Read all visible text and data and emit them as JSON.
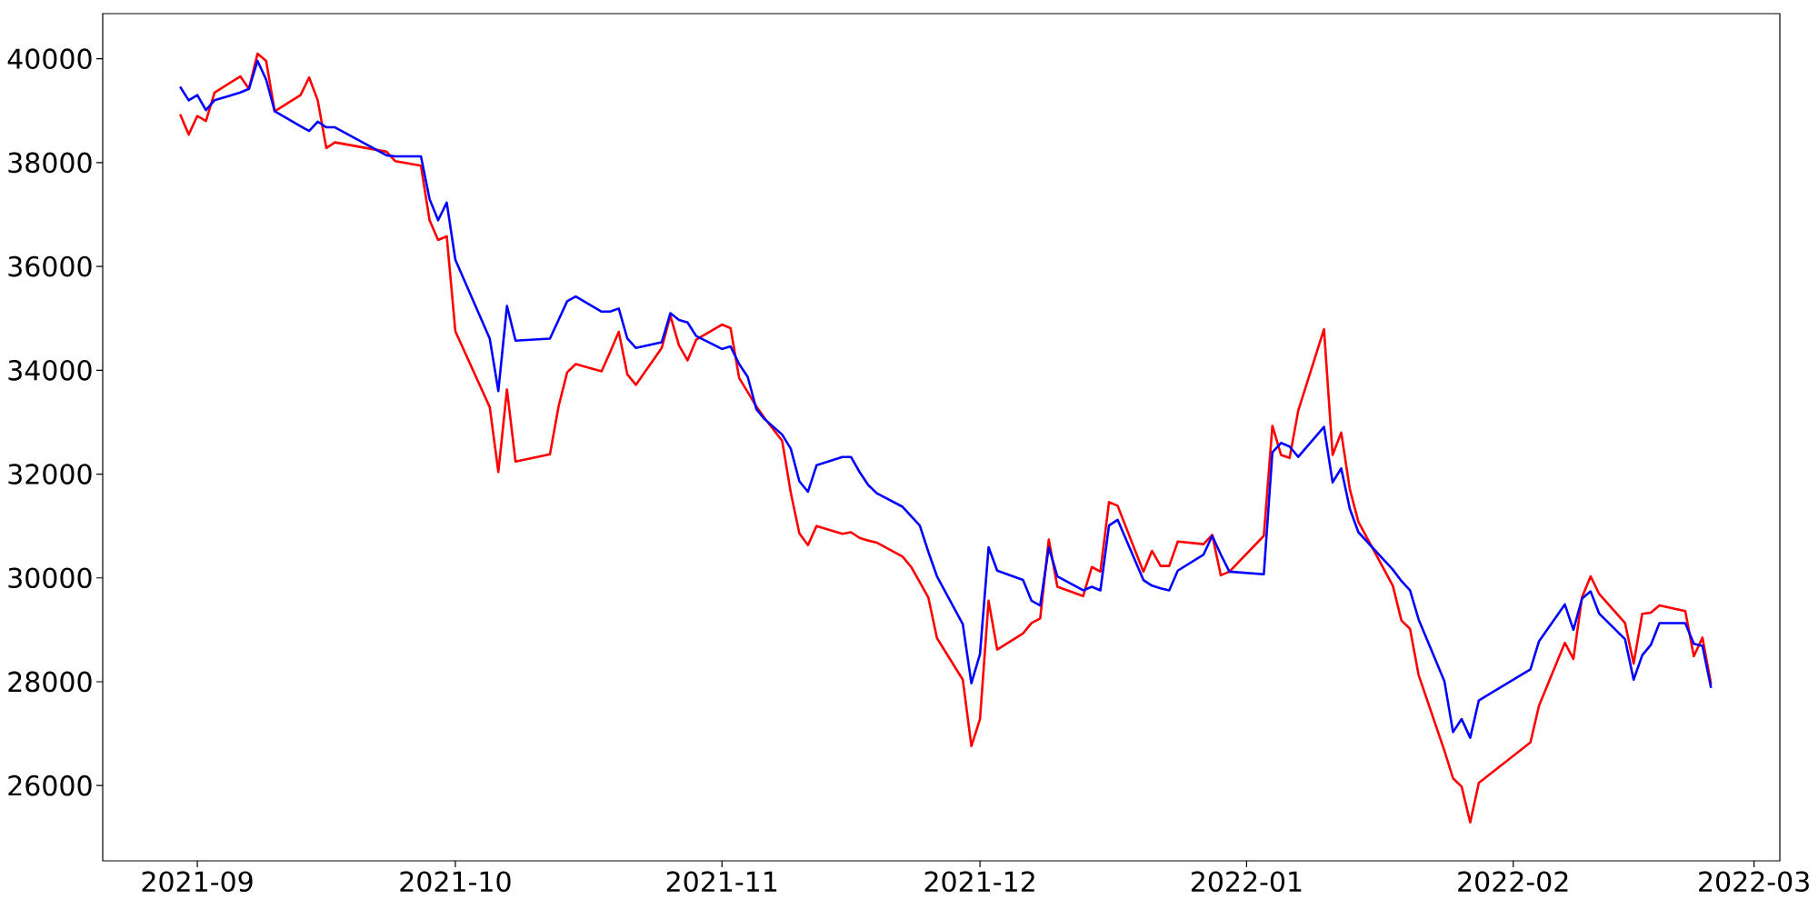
{
  "chart_data": {
    "type": "line",
    "x": [
      "2021-08-30",
      "2021-08-31",
      "2021-09-01",
      "2021-09-02",
      "2021-09-03",
      "2021-09-06",
      "2021-09-07",
      "2021-09-08",
      "2021-09-09",
      "2021-09-10",
      "2021-09-13",
      "2021-09-14",
      "2021-09-15",
      "2021-09-16",
      "2021-09-17",
      "2021-09-23",
      "2021-09-24",
      "2021-09-27",
      "2021-09-28",
      "2021-09-29",
      "2021-09-30",
      "2021-10-01",
      "2021-10-05",
      "2021-10-06",
      "2021-10-07",
      "2021-10-08",
      "2021-10-12",
      "2021-10-13",
      "2021-10-14",
      "2021-10-15",
      "2021-10-18",
      "2021-10-19",
      "2021-10-20",
      "2021-10-21",
      "2021-10-22",
      "2021-10-25",
      "2021-10-26",
      "2021-10-27",
      "2021-10-28",
      "2021-10-29",
      "2021-11-01",
      "2021-11-02",
      "2021-11-03",
      "2021-11-04",
      "2021-11-05",
      "2021-11-06",
      "2021-11-08",
      "2021-11-09",
      "2021-11-10",
      "2021-11-11",
      "2021-11-12",
      "2021-11-15",
      "2021-11-16",
      "2021-11-17",
      "2021-11-18",
      "2021-11-19",
      "2021-11-22",
      "2021-11-23",
      "2021-11-24",
      "2021-11-25",
      "2021-11-26",
      "2021-11-29",
      "2021-11-30",
      "2021-12-01",
      "2021-12-02",
      "2021-12-03",
      "2021-12-06",
      "2021-12-07",
      "2021-12-08",
      "2021-12-09",
      "2021-12-10",
      "2021-12-13",
      "2021-12-14",
      "2021-12-15",
      "2021-12-16",
      "2021-12-17",
      "2021-12-20",
      "2021-12-21",
      "2021-12-22",
      "2021-12-23",
      "2021-12-24",
      "2021-12-27",
      "2021-12-28",
      "2021-12-29",
      "2021-12-30",
      "2022-01-03",
      "2022-01-04",
      "2022-01-05",
      "2022-01-06",
      "2022-01-07",
      "2022-01-10",
      "2022-01-11",
      "2022-01-12",
      "2022-01-13",
      "2022-01-14",
      "2022-01-18",
      "2022-01-19",
      "2022-01-20",
      "2022-01-21",
      "2022-01-24",
      "2022-01-25",
      "2022-01-26",
      "2022-01-27",
      "2022-01-28",
      "2022-02-03",
      "2022-02-04",
      "2022-02-07",
      "2022-02-08",
      "2022-02-09",
      "2022-02-10",
      "2022-02-11",
      "2022-02-14",
      "2022-02-15",
      "2022-02-16",
      "2022-02-17",
      "2022-02-18",
      "2022-02-21",
      "2022-02-22",
      "2022-02-23",
      "2022-02-24"
    ],
    "series": [
      {
        "color": "#ff0000",
        "values": [
          38930,
          38540,
          38900,
          38800,
          39350,
          39660,
          39420,
          40100,
          39960,
          38990,
          39300,
          39640,
          39200,
          38280,
          38390,
          38210,
          38030,
          37940,
          36890,
          36510,
          36580,
          34750,
          33290,
          32040,
          33630,
          32240,
          32380,
          33300,
          33960,
          34120,
          33980,
          34350,
          34740,
          33920,
          33720,
          34430,
          35050,
          34480,
          34190,
          34590,
          34880,
          34810,
          33850,
          33580,
          33300,
          33070,
          32640,
          31640,
          30860,
          30630,
          31000,
          30850,
          30880,
          30770,
          30720,
          30680,
          30410,
          30210,
          29920,
          29620,
          28840,
          28040,
          26760,
          27280,
          29560,
          28620,
          28930,
          29130,
          29220,
          30740,
          29830,
          29650,
          30210,
          30120,
          31460,
          31390,
          30120,
          30520,
          30230,
          30230,
          30700,
          30650,
          30830,
          30050,
          30120,
          30810,
          32930,
          32370,
          32310,
          33220,
          34790,
          32370,
          32800,
          31710,
          31080,
          29850,
          29180,
          29020,
          28130,
          26670,
          26140,
          25980,
          25290,
          26050,
          26830,
          27540,
          28750,
          28440,
          29630,
          30030,
          29690,
          29130,
          28350,
          29310,
          29330,
          29470,
          29360,
          28490,
          28850,
          27950
        ]
      },
      {
        "color": "#0000ff",
        "values": [
          39460,
          39200,
          39300,
          39010,
          39200,
          39350,
          39420,
          39960,
          39600,
          38990,
          38700,
          38610,
          38790,
          38680,
          38680,
          38140,
          38120,
          38120,
          37300,
          36890,
          37230,
          36130,
          34610,
          33600,
          35240,
          34570,
          34610,
          34970,
          35330,
          35420,
          35130,
          35130,
          35190,
          34610,
          34430,
          34540,
          35100,
          34970,
          34920,
          34660,
          34410,
          34460,
          34120,
          33870,
          33250,
          33050,
          32760,
          32490,
          31860,
          31660,
          32170,
          32330,
          32330,
          32040,
          31790,
          31630,
          31370,
          31190,
          31010,
          30500,
          30030,
          29110,
          27970,
          28530,
          30590,
          30140,
          29960,
          29560,
          29470,
          30590,
          30030,
          29760,
          29830,
          29760,
          31010,
          31120,
          29960,
          29850,
          29800,
          29760,
          30140,
          30450,
          30810,
          30450,
          30120,
          30070,
          32420,
          32600,
          32530,
          32330,
          32910,
          31840,
          32110,
          31330,
          30880,
          30160,
          29940,
          29760,
          29200,
          28010,
          27030,
          27280,
          26920,
          27640,
          28240,
          28780,
          29490,
          29000,
          29600,
          29740,
          29310,
          28820,
          28040,
          28510,
          28710,
          29130,
          29130,
          28730,
          28690,
          27880
        ]
      }
    ],
    "xlim": [
      "2021-08-21",
      "2022-03-04"
    ],
    "xticks": [
      "2021-09",
      "2021-10",
      "2021-11",
      "2021-12",
      "2022-01",
      "2022-02",
      "2022-03"
    ],
    "ylim": [
      24550,
      40870
    ],
    "yticks": [
      26000,
      28000,
      30000,
      32000,
      34000,
      36000,
      38000,
      40000
    ],
    "grid": false,
    "marker": "none",
    "line_style": "solid"
  }
}
